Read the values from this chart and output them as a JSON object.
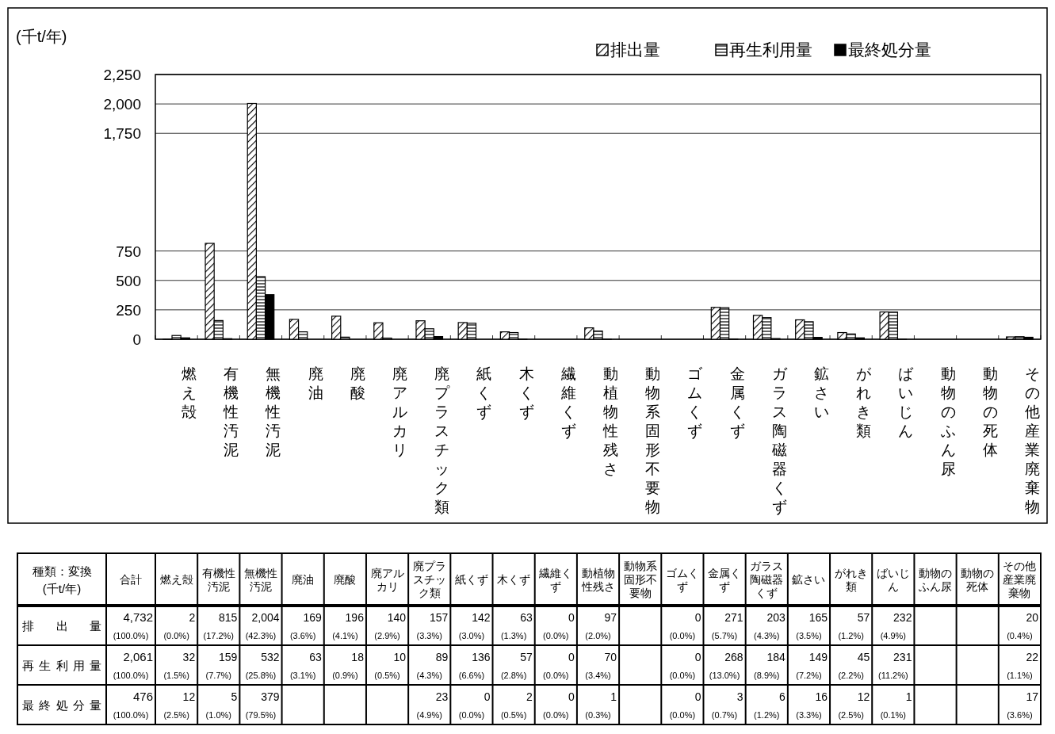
{
  "chart_data": {
    "type": "bar",
    "ylabel": "(千t/年)",
    "categories": [
      "燃え殻",
      "有機性汚泥",
      "無機性汚泥",
      "廃油",
      "廃酸",
      "廃アルカリ",
      "廃プラスチック類",
      "紙くず",
      "木くず",
      "繊維くず",
      "動植物性残さ",
      "動物系固形不要物",
      "ゴムくず",
      "金属くず",
      "ガラス陶磁器くず",
      "鉱さい",
      "がれき類",
      "ばいじん",
      "動物のふん尿",
      "動物の死体",
      "その他産業廃棄物"
    ],
    "series": [
      {
        "name": "排出量",
        "color": "#000000",
        "values": [
          2,
          815,
          2004,
          169,
          196,
          140,
          157,
          142,
          63,
          0,
          97,
          null,
          0,
          271,
          203,
          165,
          57,
          232,
          null,
          null,
          20
        ],
        "value_labels": [
          "2 (0.0%)",
          "815 (17.2%)",
          "2,004 (42.3%)",
          "169 (3.6%)",
          "196 (4.1%)",
          "140 (2.9%)",
          "157 (3.3%)",
          "142 (3.0%)",
          "63 (1.3%)",
          "0 (0.0%)",
          "97 (2.0%)",
          null,
          "0 (0.0%)",
          "271 (5.7%)",
          "203 (4.3%)",
          "165 (3.5%)",
          "57 (1.2%)",
          "232 (4.9%)",
          null,
          null,
          "20 (0.4%)"
        ]
      },
      {
        "name": "再生利用量",
        "color": "#000000",
        "values": [
          32,
          159,
          532,
          63,
          18,
          10,
          89,
          136,
          57,
          0,
          70,
          null,
          0,
          268,
          184,
          149,
          45,
          231,
          null,
          null,
          22
        ],
        "value_labels": [
          "32 (1.5%)",
          "159 (7.7%)",
          "532 (25.8%)",
          "63 (3.1%)",
          "18 (0.9%)",
          "10 (0.5%)",
          "89 (4.3%)",
          "136 (6.6%)",
          "57 (2.8%)",
          "0 (0.0%)",
          "70 (3.4%)",
          null,
          "0 (0.0%)",
          "268 (13.0%)",
          "184 (8.9%)",
          "149 (7.2%)",
          "45 (2.2%)",
          "231 (11.2%)",
          null,
          null,
          "22 (1.1%)"
        ]
      },
      {
        "name": "最終処分量",
        "color": "#000000",
        "values": [
          12,
          5,
          379,
          null,
          null,
          null,
          23,
          0,
          2,
          0,
          1,
          null,
          0,
          3,
          6,
          16,
          12,
          1,
          null,
          null,
          17
        ],
        "value_labels": [
          "12 (2.5%)",
          "5 (1.0%)",
          "379 (79.5%)",
          null,
          null,
          null,
          "23 (4.9%)",
          "0 (0.0%)",
          "2 (0.5%)",
          "0 (0.0%)",
          "1 (0.3%)",
          null,
          "0 (0.0%)",
          "3 (0.7%)",
          "6 (1.2%)",
          "16 (3.3%)",
          "12 (2.5%)",
          "1 (0.1%)",
          null,
          null,
          "17 (3.6%)"
        ]
      }
    ],
    "ylim": [
      0,
      2250
    ],
    "yticks": [
      0,
      250,
      500,
      750,
      {
        "value": 1750,
        "label": "1,750"
      },
      {
        "value": 2000,
        "label": "2,000"
      },
      {
        "value": 2250,
        "label": "2,250"
      }
    ],
    "grid": "y",
    "legend": "top right",
    "annotations": [
      "種類：変換 (千t/年)",
      "合計",
      "4,732 (100.0%)",
      "2,061 (100.0%)",
      "476 (100.0%)"
    ]
  }
}
